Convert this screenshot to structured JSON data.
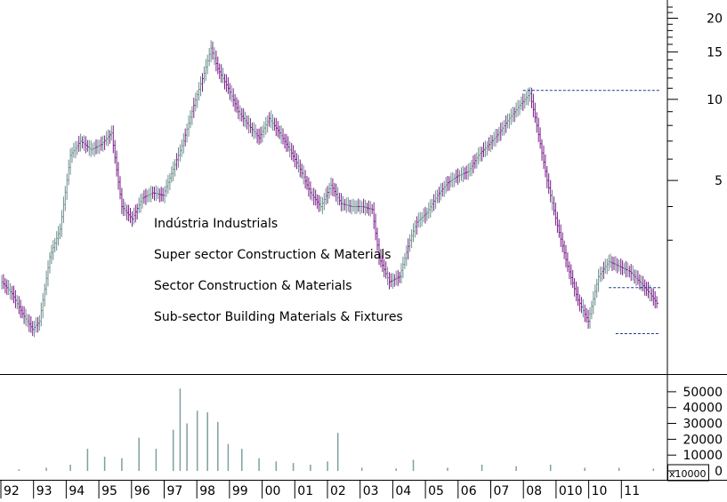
{
  "colors": {
    "up_bar": "#6f8f8f",
    "down_bar": "#7a1f8a",
    "axis": "#000000",
    "guide_line": "#1a3a8a",
    "volume_bar": "#7f9f9f",
    "annotation_text": "#000000"
  },
  "annotations": [
    "Indústria Industrials",
    "Super sector Construction & Materials",
    "Sector Construction & Materials",
    "Sub-sector Building Materials & Fixtures"
  ],
  "price_axis": {
    "scale": "log",
    "ticks": [
      "20",
      "15",
      "10",
      "5"
    ]
  },
  "volume_axis": {
    "ticks": [
      "50000",
      "40000",
      "30000",
      "20000",
      "10000",
      "0"
    ],
    "multiplier_label": "x10000"
  },
  "x_axis": {
    "labels": [
      "92",
      "93",
      "94",
      "95",
      "96",
      "97",
      "98",
      "99",
      "00",
      "01",
      "02",
      "03",
      "04",
      "05",
      "06",
      "07",
      "08",
      "010",
      "10",
      "11"
    ]
  },
  "chart_data": {
    "type": "line",
    "title": "",
    "xlabel": "",
    "ylabel": "",
    "x_scale": "years 1992–2011",
    "y_scale": "log",
    "ylim": [
      1.0,
      22
    ],
    "grid": false,
    "series": [
      {
        "kind": "price",
        "x": [
          1992.0,
          1992.3,
          1992.6,
          1992.9,
          1993.1,
          1993.4,
          1993.7,
          1994.0,
          1994.3,
          1994.6,
          1994.9,
          1995.2,
          1995.5,
          1995.8,
          1996.1,
          1996.4,
          1996.7,
          1997.0,
          1997.3,
          1997.6,
          1997.9,
          1998.1,
          1998.3,
          1998.6,
          1998.9,
          1999.2,
          1999.5,
          1999.8,
          2000.1,
          2000.4,
          2000.7,
          2001.0,
          2001.3,
          2001.6,
          2001.9,
          2002.2,
          2002.5,
          2002.8,
          2003.0,
          2003.3,
          2003.6,
          2003.9,
          2004.1,
          2004.4,
          2004.7,
          2005.0,
          2005.3,
          2005.6,
          2005.9,
          2006.2,
          2006.5,
          2006.8,
          2007.1,
          2007.4,
          2007.6,
          2007.9,
          2008.2,
          2008.5,
          2008.8,
          2009.1,
          2009.4,
          2009.7,
          2010.0,
          2010.3,
          2010.6,
          2010.9,
          2011.1
        ],
        "values": [
          2.1,
          1.9,
          1.6,
          1.4,
          1.5,
          2.6,
          3.3,
          6.2,
          7.0,
          6.5,
          6.8,
          7.5,
          4.0,
          3.6,
          4.3,
          4.5,
          4.4,
          5.5,
          7.0,
          9.5,
          12.5,
          15.5,
          13.0,
          11.0,
          9.0,
          8.0,
          7.2,
          8.5,
          7.5,
          6.5,
          5.5,
          4.5,
          4.0,
          4.8,
          4.1,
          4.0,
          4.0,
          3.9,
          2.6,
          2.1,
          2.2,
          3.0,
          3.5,
          3.8,
          4.4,
          4.9,
          5.2,
          5.4,
          6.2,
          6.8,
          7.5,
          8.5,
          9.5,
          10.5,
          8.0,
          5.0,
          3.4,
          2.4,
          1.8,
          1.5,
          2.2,
          2.5,
          2.4,
          2.3,
          2.1,
          1.9,
          1.75
        ]
      },
      {
        "kind": "volume",
        "x": [
          1992.5,
          1993.3,
          1994.0,
          1994.5,
          1995.0,
          1995.5,
          1996.0,
          1996.5,
          1997.0,
          1997.2,
          1997.4,
          1997.7,
          1998.0,
          1998.3,
          1998.6,
          1999.0,
          1999.5,
          2000.0,
          2000.5,
          2001.0,
          2001.5,
          2001.8,
          2002.5,
          2003.5,
          2004.0,
          2005.0,
          2006.0,
          2007.0,
          2008.0,
          2009.0,
          2010.0,
          2011.0
        ],
        "values": [
          1000,
          2000,
          4000,
          14000,
          9000,
          8000,
          21000,
          14000,
          26000,
          52000,
          30000,
          38000,
          37000,
          31000,
          17000,
          14000,
          8000,
          6000,
          5000,
          4000,
          6000,
          24000,
          2000,
          1500,
          7000,
          2000,
          4000,
          3000,
          4000,
          2000,
          2000,
          1500
        ]
      }
    ],
    "reference_lines": [
      10.8,
      2.0,
      1.35
    ]
  }
}
